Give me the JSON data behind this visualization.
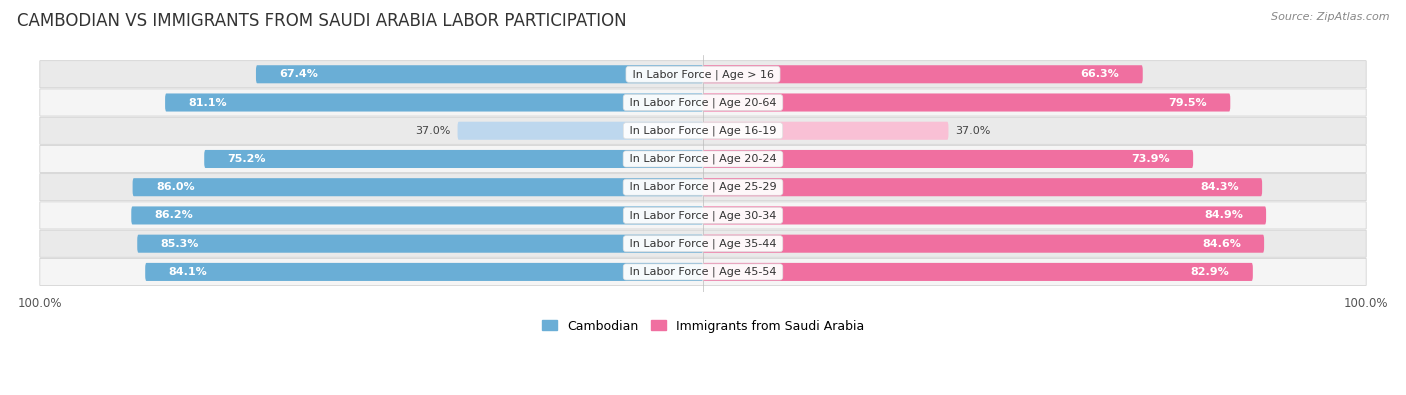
{
  "title": "CAMBODIAN VS IMMIGRANTS FROM SAUDI ARABIA LABOR PARTICIPATION",
  "source": "Source: ZipAtlas.com",
  "categories": [
    "In Labor Force | Age > 16",
    "In Labor Force | Age 20-64",
    "In Labor Force | Age 16-19",
    "In Labor Force | Age 20-24",
    "In Labor Force | Age 25-29",
    "In Labor Force | Age 30-34",
    "In Labor Force | Age 35-44",
    "In Labor Force | Age 45-54"
  ],
  "cambodian_values": [
    67.4,
    81.1,
    37.0,
    75.2,
    86.0,
    86.2,
    85.3,
    84.1
  ],
  "immigrant_values": [
    66.3,
    79.5,
    37.0,
    73.9,
    84.3,
    84.9,
    84.6,
    82.9
  ],
  "cambodian_color": "#6AAED6",
  "cambodian_color_light": "#BDD7EE",
  "immigrant_color": "#F06FA0",
  "immigrant_color_light": "#F9C0D5",
  "max_value": 100.0,
  "legend_cambodian": "Cambodian",
  "legend_immigrant": "Immigrants from Saudi Arabia",
  "row_colors": [
    "#eaeaea",
    "#f5f5f5"
  ],
  "title_fontsize": 12,
  "label_fontsize": 8,
  "value_fontsize": 8,
  "axis_label_fontsize": 8.5,
  "background_color": "#ffffff"
}
